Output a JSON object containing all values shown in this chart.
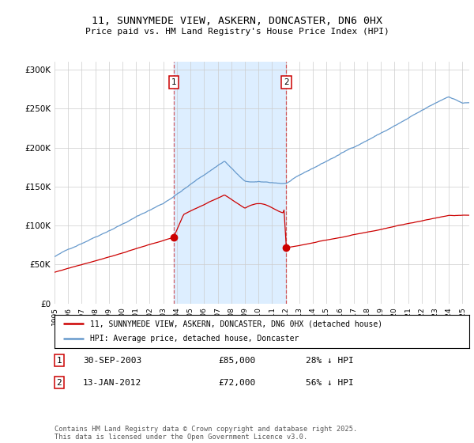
{
  "title": "11, SUNNYMEDE VIEW, ASKERN, DONCASTER, DN6 0HX",
  "subtitle": "Price paid vs. HM Land Registry's House Price Index (HPI)",
  "legend_line1": "11, SUNNYMEDE VIEW, ASKERN, DONCASTER, DN6 0HX (detached house)",
  "legend_line2": "HPI: Average price, detached house, Doncaster",
  "footnote": "Contains HM Land Registry data © Crown copyright and database right 2025.\nThis data is licensed under the Open Government Licence v3.0.",
  "sale1_date": "30-SEP-2003",
  "sale1_price": 85000,
  "sale1_label": "28% ↓ HPI",
  "sale2_date": "13-JAN-2012",
  "sale2_price": 72000,
  "sale2_label": "56% ↓ HPI",
  "red_color": "#cc0000",
  "blue_color": "#6699cc",
  "shade_color": "#ddeeff",
  "grid_color": "#cccccc",
  "bg_color": "#ffffff",
  "ylim": [
    0,
    310000
  ],
  "xlim_start": 1995,
  "xlim_end": 2025.5,
  "sale1_t": 2003.75,
  "sale2_t": 2012.04
}
